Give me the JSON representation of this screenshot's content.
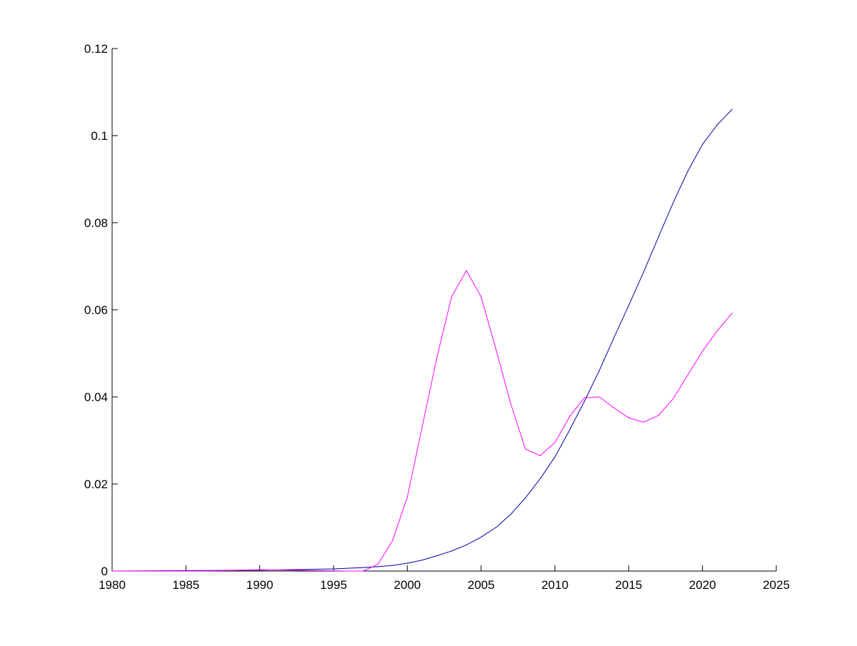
{
  "chart_data": {
    "type": "line",
    "title": "",
    "xlabel": "",
    "ylabel": "",
    "xlim": [
      1980,
      2025
    ],
    "ylim": [
      0,
      0.12
    ],
    "xticks": [
      "1980",
      "1985",
      "1990",
      "1995",
      "2000",
      "2005",
      "2010",
      "2015",
      "2020",
      "2025"
    ],
    "yticks": [
      "0",
      "0.02",
      "0.04",
      "0.06",
      "0.08",
      "0.1",
      "0.12"
    ],
    "grid": false,
    "legend": "none",
    "series": [
      {
        "color": "#0000a0",
        "x": [
          1980,
          1985,
          1990,
          1995,
          1997,
          1998,
          1999,
          2000,
          2001,
          2002,
          2003,
          2004,
          2005,
          2006,
          2007,
          2008,
          2009,
          2010,
          2011,
          2012,
          2013,
          2014,
          2015,
          2016,
          2017,
          2018,
          2019,
          2020,
          2021,
          2022
        ],
        "values": [
          0.0,
          0.0001,
          0.0002,
          0.0005,
          0.0008,
          0.001,
          0.0013,
          0.0018,
          0.0025,
          0.0035,
          0.0046,
          0.006,
          0.0078,
          0.01,
          0.013,
          0.0168,
          0.0212,
          0.0262,
          0.0324,
          0.039,
          0.046,
          0.0536,
          0.061,
          0.0686,
          0.0766,
          0.0845,
          0.0918,
          0.098,
          0.1025,
          0.106
        ]
      },
      {
        "color": "#ff00ff",
        "x": [
          1980,
          1986,
          1990,
          1996,
          1997,
          1998,
          1999,
          2000,
          2001,
          2002,
          2003,
          2004,
          2005,
          2006,
          2007,
          2008,
          2009,
          2010,
          2011,
          2012,
          2013,
          2014,
          2015,
          2016,
          2017,
          2018,
          2019,
          2020,
          2021,
          2022
        ],
        "values": [
          0.0,
          0.0,
          0.0003,
          0.0,
          0.0,
          0.0015,
          0.007,
          0.017,
          0.033,
          0.049,
          0.063,
          0.069,
          0.063,
          0.051,
          0.0385,
          0.028,
          0.0265,
          0.0295,
          0.0355,
          0.0398,
          0.04,
          0.0375,
          0.0352,
          0.0342,
          0.0357,
          0.0395,
          0.045,
          0.0505,
          0.0552,
          0.0592
        ]
      }
    ]
  }
}
